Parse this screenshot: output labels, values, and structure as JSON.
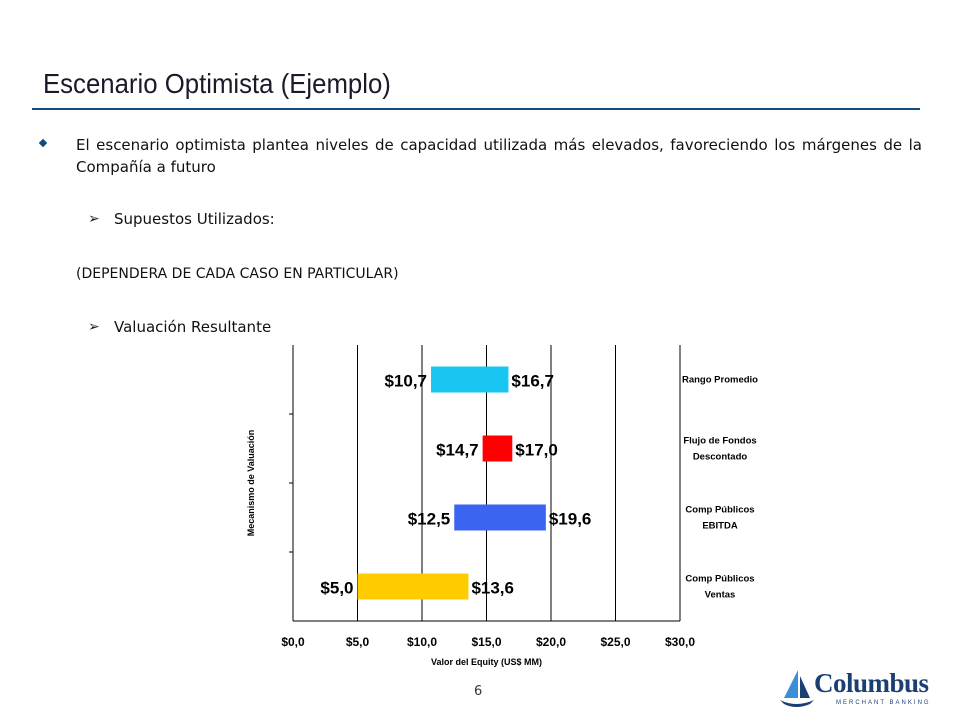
{
  "slide": {
    "title": "Escenario Optimista (Ejemplo)",
    "bullet": "El escenario optimista plantea niveles de capacidad utilizada más elevados, favoreciendo los márgenes de la Compañía a futuro",
    "sub1": "Supuestos Utilizados:",
    "note": "(DEPENDERA DE CADA CASO EN PARTICULAR)",
    "sub2": "Valuación Resultante",
    "page_number": "6",
    "logo_text": "Columbus",
    "logo_subtext": "MERCHANT BANKING"
  },
  "chart_data": {
    "type": "bar",
    "orientation": "horizontal-range",
    "xlabel": "Valor del Equity (US$ MM)",
    "ylabel": "Mecanismo de Valuación",
    "xlim": [
      0,
      30
    ],
    "xticks": [
      "$0,0",
      "$5,0",
      "$10,0",
      "$15,0",
      "$20,0",
      "$25,0",
      "$30,0"
    ],
    "grid": true,
    "categories": [
      {
        "label": "Rango Promedio",
        "low": 10.7,
        "high": 16.7,
        "low_label": "$10,7",
        "high_label": "$16,7",
        "color": "#19c6f2"
      },
      {
        "label": "Flujo de Fondos Descontado",
        "low": 14.7,
        "high": 17.0,
        "low_label": "$14,7",
        "high_label": "$17,0",
        "color": "#ff0000"
      },
      {
        "label": "Comp Públicos EBITDA",
        "low": 12.5,
        "high": 19.6,
        "low_label": "$12,5",
        "high_label": "$19,6",
        "color": "#3b64f0"
      },
      {
        "label": "Comp Públicos Ventas",
        "low": 5.0,
        "high": 13.6,
        "low_label": "$5,0",
        "high_label": "$13,6",
        "color": "#ffcc00"
      }
    ]
  }
}
